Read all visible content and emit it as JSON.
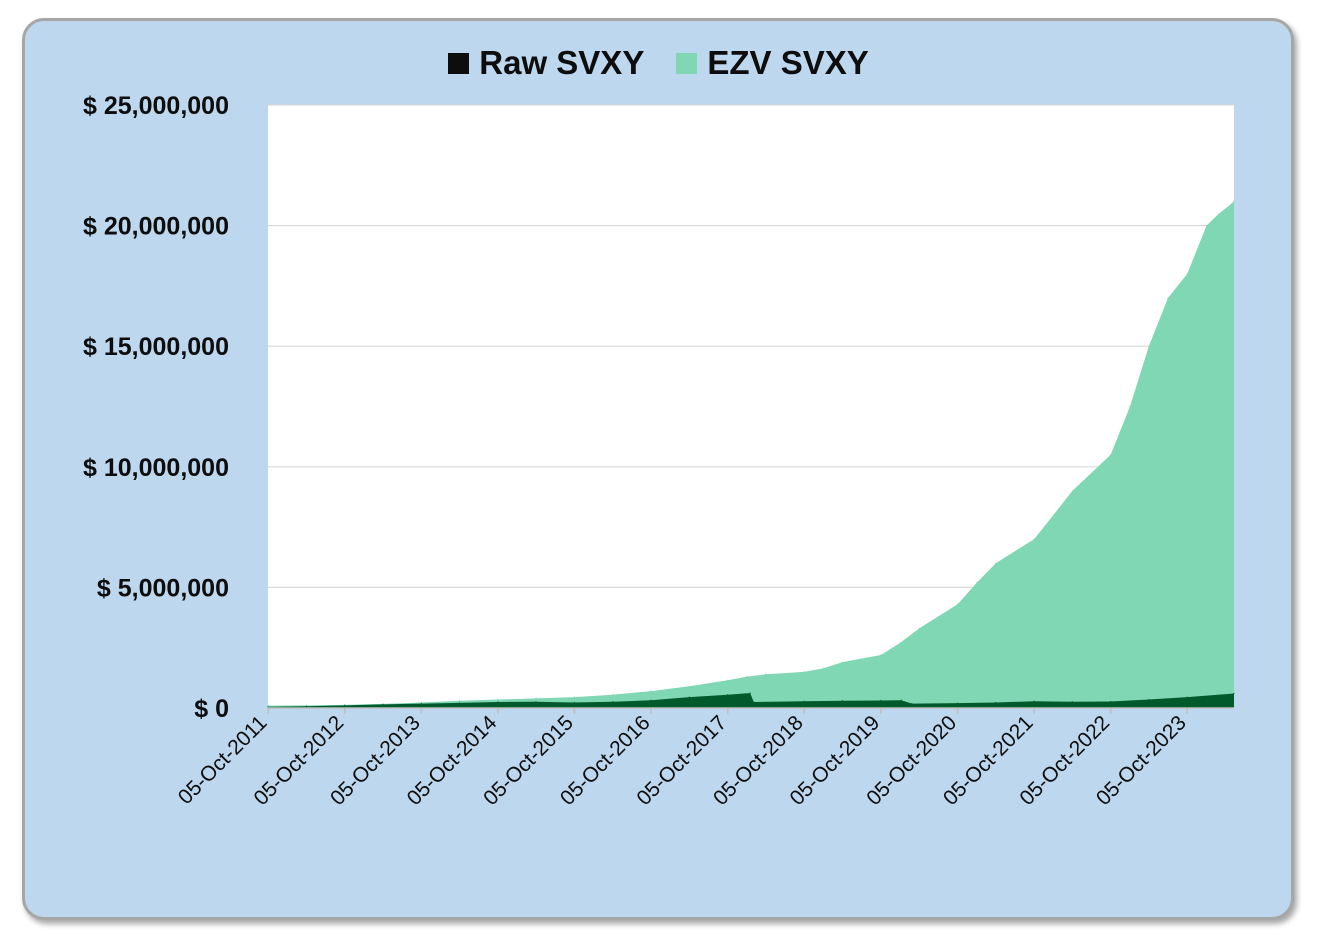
{
  "chart_data": {
    "type": "area",
    "title": "",
    "xlabel": "",
    "ylabel": "",
    "ylim": [
      0,
      25000000
    ],
    "xlim": [
      "2011-10-05",
      "2024-05-15"
    ],
    "y_ticks": [
      {
        "value": 0,
        "label": "$  0"
      },
      {
        "value": 5000000,
        "label": "$  5,000,000"
      },
      {
        "value": 10000000,
        "label": "$  10,000,000"
      },
      {
        "value": 15000000,
        "label": "$  15,000,000"
      },
      {
        "value": 20000000,
        "label": "$  20,000,000"
      },
      {
        "value": 25000000,
        "label": "$  25,000,000"
      }
    ],
    "x_ticks": [
      {
        "value": "2011-10-05",
        "label": "05-Oct-2011"
      },
      {
        "value": "2012-10-05",
        "label": "05-Oct-2012"
      },
      {
        "value": "2013-10-05",
        "label": "05-Oct-2013"
      },
      {
        "value": "2014-10-05",
        "label": "05-Oct-2014"
      },
      {
        "value": "2015-10-05",
        "label": "05-Oct-2015"
      },
      {
        "value": "2016-10-05",
        "label": "05-Oct-2016"
      },
      {
        "value": "2017-10-05",
        "label": "05-Oct-2017"
      },
      {
        "value": "2018-10-05",
        "label": "05-Oct-2018"
      },
      {
        "value": "2019-10-05",
        "label": "05-Oct-2019"
      },
      {
        "value": "2020-10-05",
        "label": "05-Oct-2020"
      },
      {
        "value": "2021-10-05",
        "label": "05-Oct-2021"
      },
      {
        "value": "2022-10-05",
        "label": "05-Oct-2022"
      },
      {
        "value": "2023-10-05",
        "label": "05-Oct-2023"
      }
    ],
    "grid": true,
    "legend_position": "top-center",
    "series": [
      {
        "name": "EZV SVXY",
        "color": "#7fd7b4",
        "points": [
          [
            "2011-10-05",
            100000
          ],
          [
            "2012-04-05",
            110000
          ],
          [
            "2012-10-05",
            130000
          ],
          [
            "2013-04-05",
            170000
          ],
          [
            "2013-10-05",
            230000
          ],
          [
            "2014-04-05",
            300000
          ],
          [
            "2014-10-05",
            350000
          ],
          [
            "2015-04-05",
            400000
          ],
          [
            "2015-10-05",
            450000
          ],
          [
            "2016-04-05",
            550000
          ],
          [
            "2016-10-05",
            700000
          ],
          [
            "2017-04-05",
            900000
          ],
          [
            "2017-10-05",
            1150000
          ],
          [
            "2018-01-05",
            1300000
          ],
          [
            "2018-04-05",
            1400000
          ],
          [
            "2018-10-05",
            1500000
          ],
          [
            "2019-01-05",
            1650000
          ],
          [
            "2019-04-05",
            1900000
          ],
          [
            "2019-10-05",
            2200000
          ],
          [
            "2020-01-05",
            2700000
          ],
          [
            "2020-04-05",
            3300000
          ],
          [
            "2020-10-05",
            4300000
          ],
          [
            "2021-01-05",
            5200000
          ],
          [
            "2021-04-05",
            6000000
          ],
          [
            "2021-10-05",
            7000000
          ],
          [
            "2022-01-05",
            8000000
          ],
          [
            "2022-04-05",
            9000000
          ],
          [
            "2022-10-05",
            10500000
          ],
          [
            "2023-01-05",
            12500000
          ],
          [
            "2023-04-05",
            15000000
          ],
          [
            "2023-07-05",
            17000000
          ],
          [
            "2023-10-05",
            18000000
          ],
          [
            "2024-01-05",
            20000000
          ],
          [
            "2024-03-05",
            20500000
          ],
          [
            "2024-05-15",
            21000000
          ]
        ]
      },
      {
        "name": "Raw SVXY",
        "color": "#005a2b",
        "points": [
          [
            "2011-10-05",
            50000
          ],
          [
            "2012-04-05",
            70000
          ],
          [
            "2012-10-05",
            110000
          ],
          [
            "2013-04-05",
            150000
          ],
          [
            "2013-10-05",
            180000
          ],
          [
            "2014-04-05",
            210000
          ],
          [
            "2014-10-05",
            250000
          ],
          [
            "2015-04-05",
            260000
          ],
          [
            "2015-10-05",
            230000
          ],
          [
            "2016-04-05",
            260000
          ],
          [
            "2016-10-05",
            320000
          ],
          [
            "2017-04-05",
            450000
          ],
          [
            "2017-10-05",
            550000
          ],
          [
            "2018-01-20",
            620000
          ],
          [
            "2018-02-06",
            250000
          ],
          [
            "2018-10-05",
            280000
          ],
          [
            "2019-04-05",
            300000
          ],
          [
            "2019-10-05",
            310000
          ],
          [
            "2020-01-10",
            320000
          ],
          [
            "2020-03-01",
            180000
          ],
          [
            "2020-10-05",
            200000
          ],
          [
            "2021-04-05",
            230000
          ],
          [
            "2021-10-05",
            280000
          ],
          [
            "2022-04-05",
            260000
          ],
          [
            "2022-10-05",
            270000
          ],
          [
            "2023-04-05",
            350000
          ],
          [
            "2023-10-05",
            450000
          ],
          [
            "2024-05-15",
            600000
          ]
        ]
      }
    ]
  }
}
